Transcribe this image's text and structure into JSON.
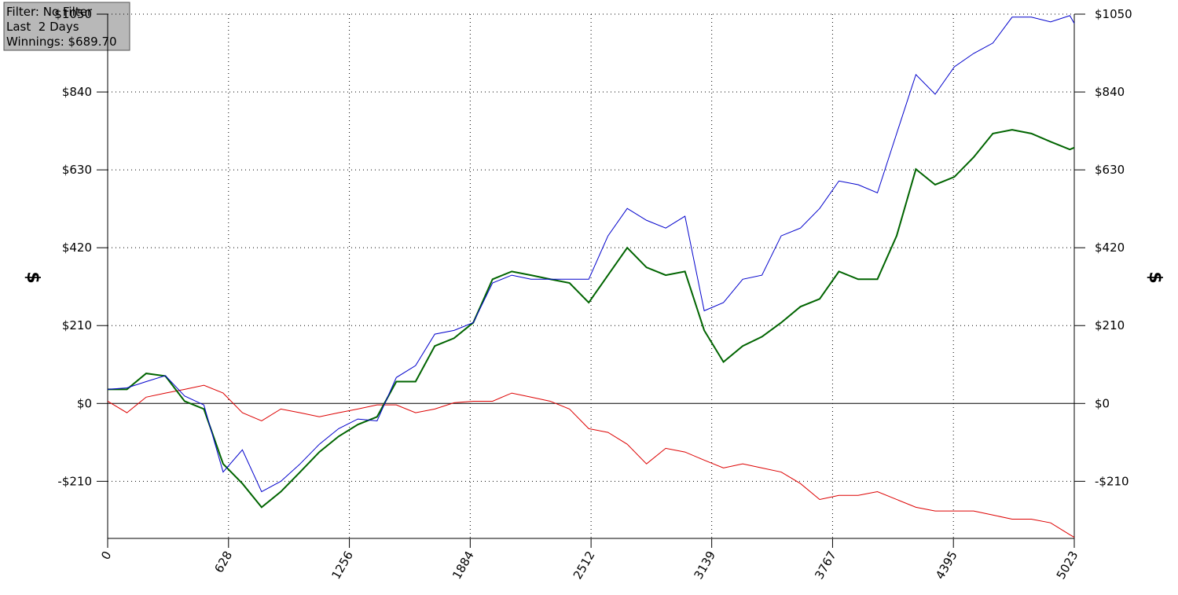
{
  "chart_data": {
    "type": "line",
    "info_box": [
      "Filter: No Filter",
      "Last  2 Days",
      "Winnings: $689.70"
    ],
    "ylabel": "$",
    "x": [
      0,
      100,
      200,
      300,
      400,
      500,
      600,
      700,
      800,
      900,
      1000,
      1100,
      1200,
      1300,
      1400,
      1500,
      1600,
      1700,
      1800,
      1900,
      2000,
      2100,
      2200,
      2300,
      2400,
      2500,
      2600,
      2700,
      2800,
      2900,
      3000,
      3100,
      3200,
      3300,
      3400,
      3500,
      3600,
      3700,
      3800,
      3900,
      4000,
      4100,
      4200,
      4300,
      4400,
      4500,
      4600,
      4700,
      4800,
      4900,
      5000,
      5023
    ],
    "series": [
      {
        "color": "#0000cc",
        "width": 1,
        "values": [
          38,
          42,
          59,
          75,
          20,
          -4,
          -185,
          -125,
          -238,
          -210,
          -163,
          -110,
          -68,
          -42,
          -47,
          70,
          102,
          187,
          197,
          218,
          325,
          346,
          335,
          335,
          335,
          335,
          452,
          526,
          494,
          473,
          505,
          250,
          272,
          335,
          346,
          452,
          473,
          526,
          600,
          590,
          568,
          728,
          887,
          834,
          908,
          944,
          972,
          1042,
          1042,
          1029,
          1046,
          1025
        ]
      },
      {
        "color": "#006400",
        "width": 2,
        "values": [
          38,
          38,
          81,
          74,
          6,
          -15,
          -163,
          -216,
          -280,
          -238,
          -185,
          -131,
          -89,
          -57,
          -36,
          59,
          59,
          155,
          176,
          218,
          335,
          356,
          346,
          335,
          325,
          272,
          346,
          420,
          367,
          346,
          356,
          197,
          112,
          155,
          180,
          218,
          261,
          282,
          356,
          335,
          335,
          452,
          632,
          590,
          611,
          664,
          728,
          738,
          728,
          706,
          685,
          690
        ]
      },
      {
        "color": "#dd0000",
        "width": 1,
        "values": [
          6,
          -25,
          17,
          28,
          38,
          49,
          28,
          -25,
          -47,
          -15,
          -25,
          -36,
          -25,
          -15,
          -4,
          -4,
          -25,
          -15,
          2,
          6,
          6,
          28,
          17,
          6,
          -15,
          -68,
          -78,
          -110,
          -163,
          -121,
          -131,
          -153,
          -174,
          -163,
          -174,
          -185,
          -216,
          -259,
          -248,
          -248,
          -238,
          -259,
          -280,
          -290,
          -290,
          -290,
          -301,
          -312,
          -312,
          -322,
          -354,
          -361
        ]
      }
    ],
    "xlim": [
      0,
      5023
    ],
    "xticks": [
      0,
      628,
      1256,
      1884,
      2512,
      3139,
      3767,
      4395,
      5023
    ],
    "ylim": [
      -364,
      1050
    ],
    "yticks": [
      {
        "value": -210,
        "label": "-$210"
      },
      {
        "value": 0,
        "label": "$0"
      },
      {
        "value": 210,
        "label": "$210"
      },
      {
        "value": 420,
        "label": "$420"
      },
      {
        "value": 630,
        "label": "$630"
      },
      {
        "value": 840,
        "label": "$840"
      },
      {
        "value": 1050,
        "label": "$1050"
      }
    ],
    "grid": true
  }
}
